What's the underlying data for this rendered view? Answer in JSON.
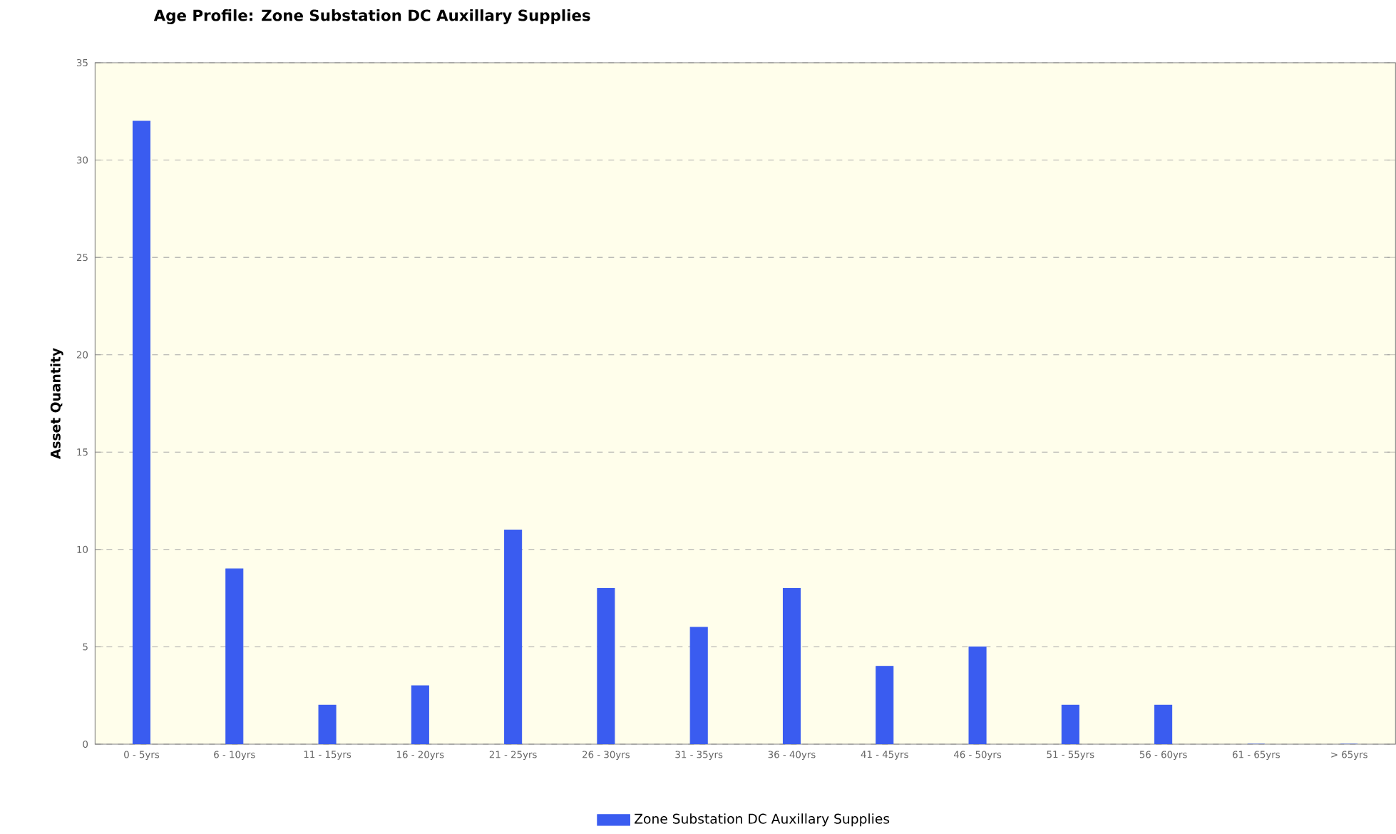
{
  "chart_data": {
    "type": "bar",
    "title": "Age Profile:  Zone Substation DC Auxillary Supplies",
    "ylabel": "Asset Quantity",
    "categories": [
      "0 - 5yrs",
      "6 - 10yrs",
      "11 - 15yrs",
      "16 - 20yrs",
      "21 - 25yrs",
      "26 - 30yrs",
      "31 - 35yrs",
      "36 - 40yrs",
      "41 - 45yrs",
      "46 - 50yrs",
      "51 - 55yrs",
      "56 - 60yrs",
      "61 - 65yrs",
      "> 65yrs"
    ],
    "series": [
      {
        "name": "Zone Substation DC Auxillary Supplies",
        "color": "#3a5cf0",
        "values": [
          32,
          9,
          2,
          3,
          11,
          8,
          6,
          8,
          4,
          5,
          2,
          2,
          0,
          0
        ]
      }
    ],
    "ylim": [
      0,
      35
    ],
    "yticks": [
      0,
      5,
      10,
      15,
      20,
      25,
      30,
      35
    ],
    "grid": "y",
    "legend": "bottom"
  }
}
